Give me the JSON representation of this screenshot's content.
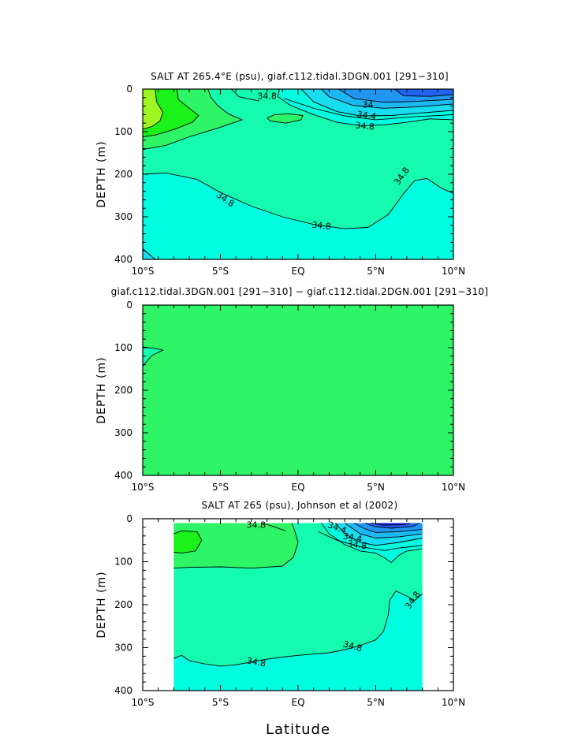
{
  "figure": {
    "xlabel": "Latitude",
    "colors": {
      "background": "#ffffff",
      "lime": "#9ef51f",
      "green": "#1af21a",
      "lightgreen": "#2ef565",
      "seagreen": "#14fbb0",
      "aqua": "#00fde0",
      "azure1": "#18dcf0",
      "azure2": "#1cb8f2",
      "blue1": "#2196f0",
      "blue2": "#1f63f0",
      "blue3": "#1818e6"
    }
  },
  "chart_data": [
    {
      "type": "heatmap",
      "title": "SALT AT 265.4°E (psu), giaf.c112.tidal.3DGN.001 [291−310]",
      "ylabel": "DEPTH (m)",
      "xlim": [
        -10,
        10
      ],
      "ylim": [
        400,
        0
      ],
      "xticks": [
        -10,
        -5,
        0,
        5,
        10
      ],
      "xtick_labels": [
        "10°S",
        "5°S",
        "EQ",
        "5°N",
        "10°N"
      ],
      "yticks": [
        0,
        100,
        200,
        300,
        400
      ],
      "ytick_labels": [
        "0",
        "100",
        "200",
        "300",
        "400"
      ],
      "contour_labels": [
        "34.8",
        "34",
        "34.4",
        "34.8",
        "34.8",
        "34.8",
        "34.8"
      ],
      "salinity_levels": [
        33.6,
        33.8,
        34.0,
        34.2,
        34.4,
        34.6,
        34.8,
        35.0,
        35.2
      ],
      "features": {
        "subsurface_max_depth_m": 70,
        "fresh_surface_pool": "north of 3°N, upper 60 m",
        "isohaline_34_8_depth_range_m": [
          200,
          330
        ]
      }
    },
    {
      "type": "heatmap",
      "title": "giaf.c112.tidal.3DGN.001 [291−310] − giaf.c112.tidal.2DGN.001 [291−310]",
      "ylabel": "DEPTH (m)",
      "xlim": [
        -10,
        10
      ],
      "ylim": [
        400,
        0
      ],
      "xticks": [
        -10,
        -5,
        0,
        5,
        10
      ],
      "xtick_labels": [
        "10°S",
        "5°S",
        "EQ",
        "5°N",
        "10°N"
      ],
      "yticks": [
        0,
        100,
        200,
        300,
        400
      ],
      "ytick_labels": [
        "0",
        "100",
        "200",
        "300",
        "400"
      ],
      "contour_labels": [],
      "features": {
        "difference": "near zero everywhere except a small region at 10°S, 100–140 m"
      }
    },
    {
      "type": "heatmap",
      "title": "SALT AT 265 (psu), Johnson et al (2002)",
      "ylabel": "DEPTH (m)",
      "xlim": [
        -10,
        10
      ],
      "ylim": [
        400,
        0
      ],
      "data_extent_lat": [
        -8,
        8
      ],
      "data_extent_depth": [
        10,
        400
      ],
      "xticks": [
        -10,
        -5,
        0,
        5,
        10
      ],
      "xtick_labels": [
        "10°S",
        "5°S",
        "EQ",
        "5°N",
        "10°N"
      ],
      "yticks": [
        0,
        100,
        200,
        300,
        400
      ],
      "ytick_labels": [
        "0",
        "100",
        "200",
        "300",
        "400"
      ],
      "contour_labels": [
        "34.8",
        "34.4",
        "34.4",
        "34.8",
        "34.8",
        "34.8",
        "34.8"
      ],
      "salinity_levels": [
        33.4,
        33.6,
        33.8,
        34.0,
        34.2,
        34.4,
        34.6,
        34.8,
        35.0
      ]
    }
  ]
}
